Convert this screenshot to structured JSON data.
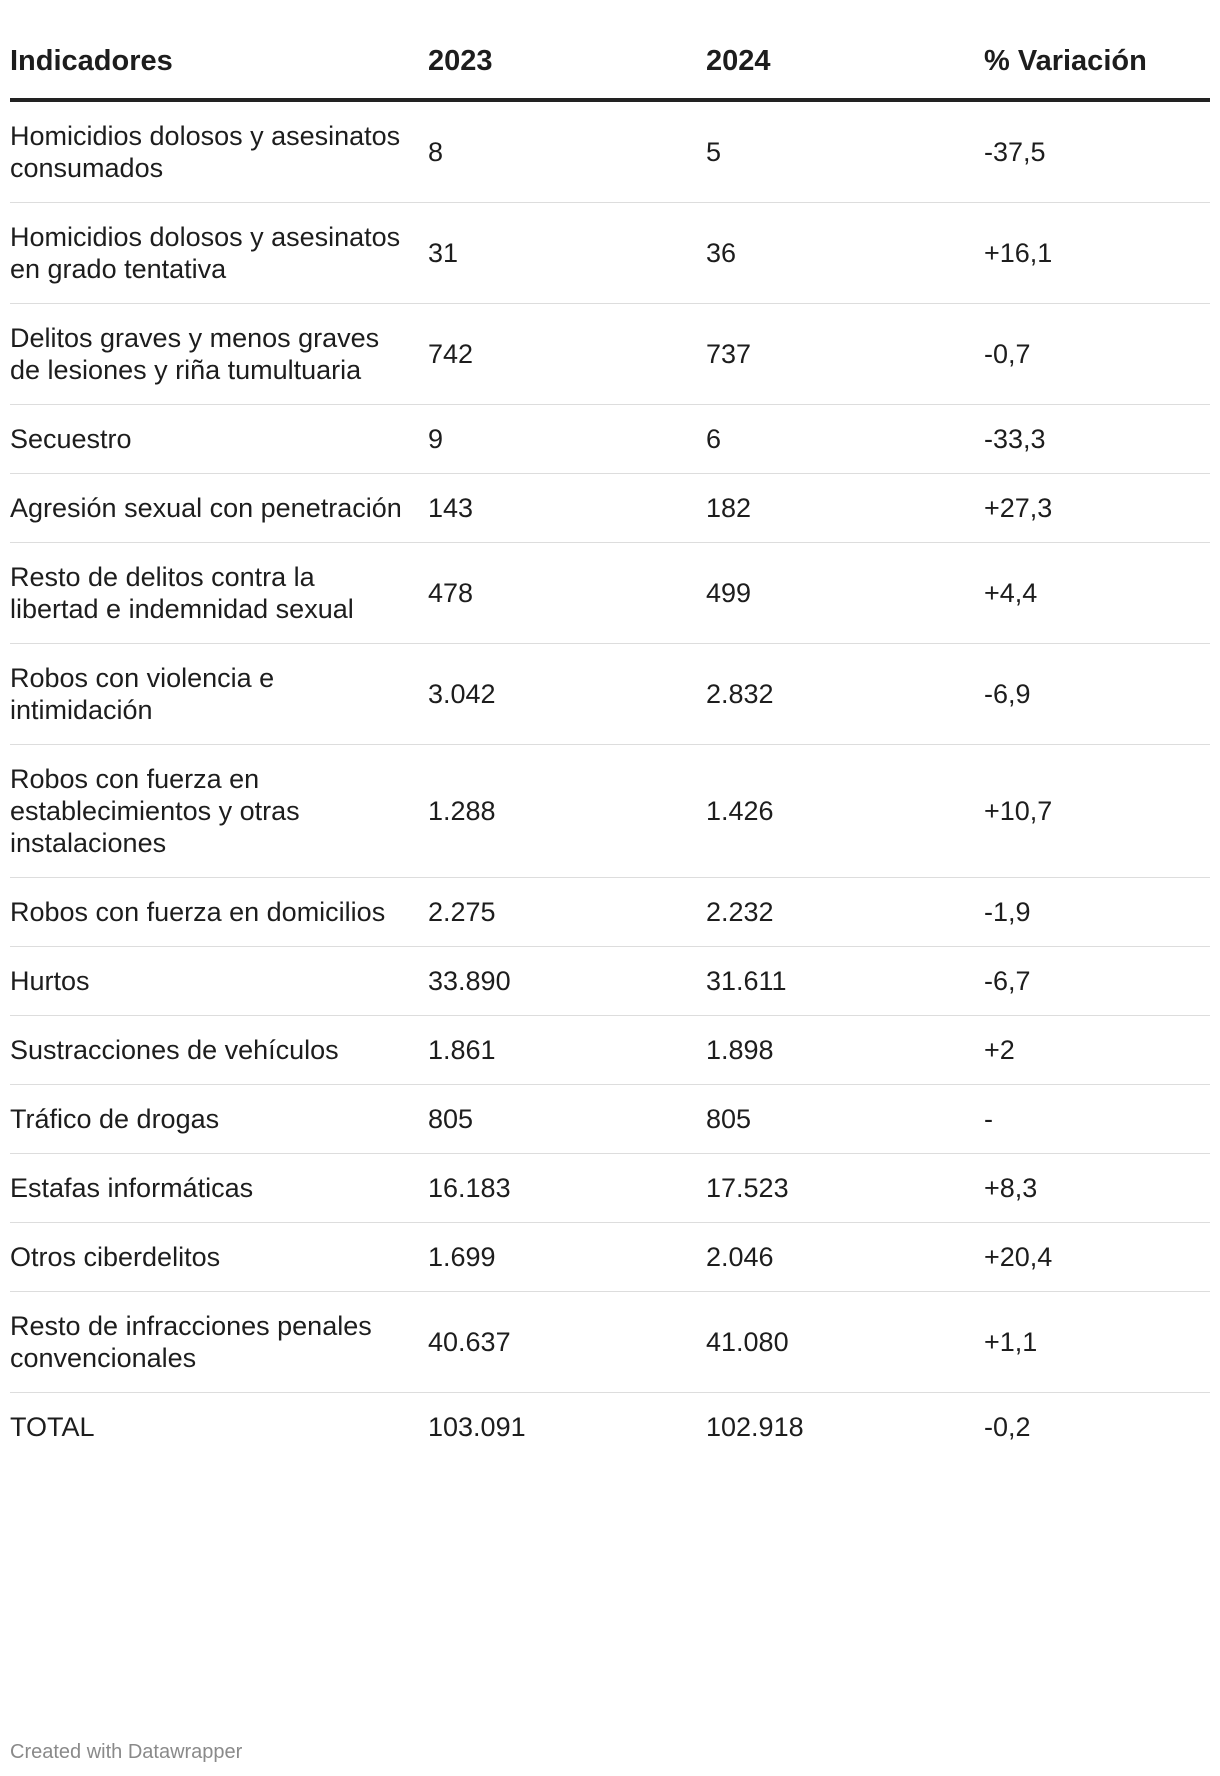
{
  "chart_data": {
    "type": "table",
    "columns": [
      "Indicadores",
      "2023",
      "2024",
      "% Variación"
    ],
    "rows": [
      [
        "Homicidios dolosos y asesinatos consumados",
        "8",
        "5",
        "-37,5"
      ],
      [
        "Homicidios dolosos y asesinatos en grado tentativa",
        "31",
        "36",
        "+16,1"
      ],
      [
        "Delitos graves y menos graves de lesiones y riña tumultuaria",
        "742",
        "737",
        "-0,7"
      ],
      [
        "Secuestro",
        "9",
        "6",
        "-33,3"
      ],
      [
        "Agresión sexual con penetración",
        "143",
        "182",
        "+27,3"
      ],
      [
        "Resto de delitos contra la libertad e indemnidad sexual",
        "478",
        "499",
        "+4,4"
      ],
      [
        "Robos con violencia e intimidación",
        "3.042",
        "2.832",
        "-6,9"
      ],
      [
        "Robos con fuerza en establecimientos y otras instalaciones",
        "1.288",
        "1.426",
        "+10,7"
      ],
      [
        "Robos con fuerza en domicilios",
        "2.275",
        "2.232",
        "-1,9"
      ],
      [
        "Hurtos",
        "33.890",
        "31.611",
        "-6,7"
      ],
      [
        "Sustracciones de vehículos",
        "1.861",
        "1.898",
        "+2"
      ],
      [
        "Tráfico de drogas",
        "805",
        "805",
        "-"
      ],
      [
        "Estafas informáticas",
        "16.183",
        "17.523",
        "+8,3"
      ],
      [
        "Otros ciberdelitos",
        "1.699",
        "2.046",
        "+20,4"
      ],
      [
        "Resto de infracciones penales convencionales",
        "40.637",
        "41.080",
        "+1,1"
      ],
      [
        "TOTAL",
        "103.091",
        "102.918",
        "-0,2"
      ]
    ]
  },
  "footer": {
    "credit": "Created with Datawrapper"
  }
}
